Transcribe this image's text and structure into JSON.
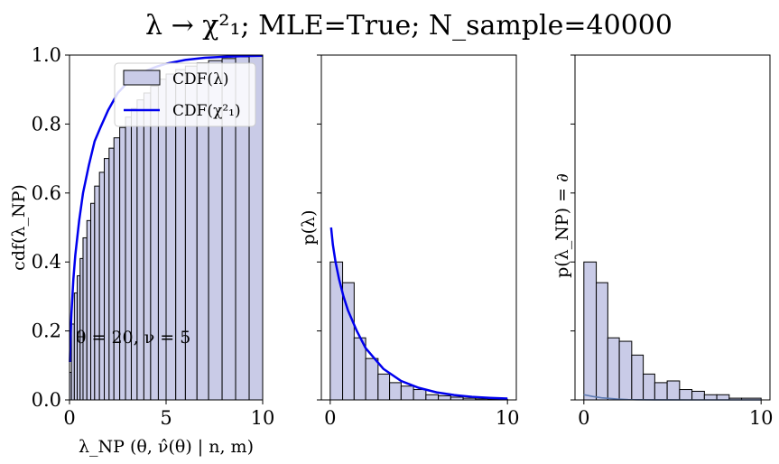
{
  "figure": {
    "title": "λ → χ²₁; MLE=True; N_sample=40000"
  },
  "colors": {
    "hist_fill": "#c9cbe7",
    "hist_edge": "#000000",
    "chi2_line": "#0000ee",
    "small_line": "#5a78b0"
  },
  "chart_data": [
    {
      "type": "area",
      "panel": "cdf",
      "ylabel": "cdf(λ_NP)",
      "xlabel": "λ_NP (θ, ν̂(θ) | n, m)",
      "xlim": [
        0,
        10
      ],
      "ylim": [
        0,
        1
      ],
      "xticks": [
        "0",
        "5",
        "10"
      ],
      "yticks": [
        "0.0",
        "0.2",
        "0.4",
        "0.6",
        "0.8",
        "1.0"
      ],
      "annotation": "θ = 20, ν = 5",
      "legend_position": "top-right",
      "series": [
        {
          "name": "CDF(λ)",
          "kind": "step-hist",
          "bin_edges": [
            0.0,
            0.1,
            0.25,
            0.4,
            0.55,
            0.7,
            0.9,
            1.1,
            1.3,
            1.55,
            1.8,
            2.05,
            2.3,
            2.6,
            2.9,
            3.2,
            3.5,
            3.85,
            4.2,
            4.6,
            5.0,
            5.5,
            6.0,
            6.6,
            7.2,
            7.9,
            8.6,
            9.3,
            10.0
          ],
          "values": [
            0.08,
            0.22,
            0.31,
            0.36,
            0.41,
            0.47,
            0.52,
            0.57,
            0.62,
            0.66,
            0.7,
            0.73,
            0.76,
            0.79,
            0.82,
            0.845,
            0.87,
            0.89,
            0.91,
            0.93,
            0.945,
            0.958,
            0.968,
            0.977,
            0.984,
            0.99,
            0.995,
            0.998
          ]
        },
        {
          "name": "CDF(χ²₁)",
          "kind": "line",
          "x": [
            0.02,
            0.05,
            0.1,
            0.2,
            0.3,
            0.5,
            0.7,
            1.0,
            1.3,
            1.6,
            2.0,
            2.5,
            3.0,
            3.5,
            4.0,
            4.5,
            5.0,
            6.0,
            7.0,
            8.0,
            9.0,
            10.0
          ],
          "y": [
            0.11,
            0.18,
            0.25,
            0.35,
            0.42,
            0.52,
            0.6,
            0.68,
            0.75,
            0.79,
            0.84,
            0.89,
            0.92,
            0.94,
            0.955,
            0.966,
            0.975,
            0.986,
            0.992,
            0.995,
            0.997,
            0.998
          ]
        }
      ]
    },
    {
      "type": "area",
      "panel": "pdf",
      "ylabel": "p(λ)",
      "xlim": [
        0,
        10
      ],
      "ylim": [
        0,
        1
      ],
      "xticks": [
        "0",
        "10"
      ],
      "series": [
        {
          "kind": "step-hist",
          "bin_edges": [
            0,
            0.7,
            1.35,
            2.0,
            2.7,
            3.35,
            4.0,
            4.7,
            5.4,
            6.1,
            6.8,
            7.5,
            8.2,
            8.9,
            10.0
          ],
          "values": [
            0.4,
            0.34,
            0.18,
            0.12,
            0.075,
            0.05,
            0.04,
            0.03,
            0.015,
            0.012,
            0.008,
            0.005,
            0.003,
            0.002
          ]
        },
        {
          "kind": "line",
          "x": [
            0.05,
            0.15,
            0.3,
            0.5,
            0.75,
            1.0,
            1.5,
            2.0,
            2.5,
            3.0,
            4.0,
            5.0,
            6.0,
            7.0,
            8.0,
            9.0,
            10.0
          ],
          "y": [
            0.5,
            0.45,
            0.4,
            0.35,
            0.3,
            0.26,
            0.2,
            0.15,
            0.12,
            0.09,
            0.055,
            0.035,
            0.022,
            0.014,
            0.009,
            0.006,
            0.004
          ]
        }
      ]
    },
    {
      "type": "area",
      "panel": "pdf-partial",
      "ylabel": "p(λ_NP) = ∂",
      "xlim": [
        0,
        10
      ],
      "ylim": [
        0,
        1
      ],
      "xticks": [
        "0",
        "10"
      ],
      "series": [
        {
          "kind": "step-hist",
          "bin_edges": [
            0,
            0.7,
            1.35,
            2.0,
            2.7,
            3.35,
            4.0,
            4.7,
            5.4,
            6.1,
            6.8,
            7.5,
            8.2,
            8.9,
            10.0
          ],
          "values": [
            0.4,
            0.34,
            0.18,
            0.17,
            0.13,
            0.075,
            0.05,
            0.055,
            0.03,
            0.025,
            0.015,
            0.015,
            0.005,
            0.005
          ]
        },
        {
          "kind": "line",
          "x": [
            0.0,
            0.5,
            1.0,
            1.5,
            2.0,
            2.5,
            3.0,
            4.0,
            5.0,
            6.0,
            8.0,
            10.0
          ],
          "y": [
            0.015,
            0.01,
            0.006,
            0.004,
            0.002,
            0.001,
            0.0006,
            0.0002,
            0.0001,
            0.0,
            0.0,
            0.0
          ]
        }
      ]
    }
  ]
}
